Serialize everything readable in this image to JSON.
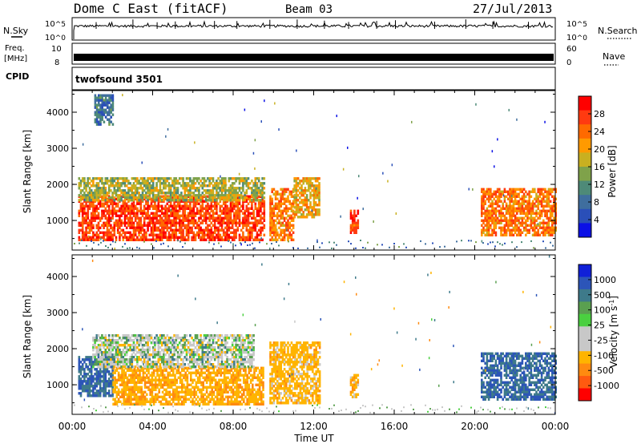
{
  "header": {
    "station": "Dome C East (fitACF)",
    "beam": "Beam 03",
    "date": "27/Jul/2013"
  },
  "strip": {
    "nsky_label": "N.Sky",
    "nsearch_label": "N.Search",
    "freq_label_1": "Freq.",
    "freq_label_2": "[MHz]",
    "nave_label": "Nave",
    "cpid_label": "CPID",
    "cpid_value": "twofsound 3501",
    "noise_ticks": [
      "10^5",
      "10^0"
    ],
    "noise_ticks_right": [
      "10^5",
      "10^0"
    ],
    "freq_ticks": [
      "10",
      "8"
    ],
    "nave_ticks": [
      "60",
      "0"
    ]
  },
  "colors": {
    "power_scale": [
      "#0b10e6",
      "#2a4fb8",
      "#3f6e9e",
      "#4e8a78",
      "#7fa24a",
      "#c9b020",
      "#ff9a00",
      "#ff6a00",
      "#ff3a10",
      "#ff0000"
    ],
    "velocity_scale": [
      "#1020d8",
      "#2c55b8",
      "#3e7a8a",
      "#5aa050",
      "#4ad040",
      "#c8c8c8",
      "#c8c8c8",
      "#ffb400",
      "#ff8a10",
      "#ff5a10",
      "#ff0000"
    ]
  },
  "chart_data": [
    {
      "type": "heatmap",
      "panel": "power",
      "xlabel": "Time UT",
      "ylabel": "Slant Range [km]",
      "x_ticks": [
        "00:00",
        "04:00",
        "08:00",
        "12:00",
        "16:00",
        "20:00",
        "00:00"
      ],
      "y_ticks": [
        "1000",
        "2000",
        "3000",
        "4000"
      ],
      "xlim": [
        0,
        24
      ],
      "ylim": [
        180,
        4600
      ],
      "colorbar_label": "Power [dB]",
      "colorbar_ticks": [
        "28",
        "24",
        "20",
        "16",
        "12",
        "8",
        "4"
      ],
      "regions": [
        {
          "t": [
            0.3,
            9.5
          ],
          "r": [
            450,
            1700
          ],
          "value": 28
        },
        {
          "t": [
            0.3,
            9.5
          ],
          "r": [
            1600,
            2200
          ],
          "value": 16
        },
        {
          "t": [
            1.1,
            2.0
          ],
          "r": [
            3700,
            4500
          ],
          "value": 8
        },
        {
          "t": [
            9.8,
            11.0
          ],
          "r": [
            500,
            1900
          ],
          "value": 24
        },
        {
          "t": [
            11.0,
            12.3
          ],
          "r": [
            1100,
            2200
          ],
          "value": 20
        },
        {
          "t": [
            13.8,
            14.2
          ],
          "r": [
            700,
            1300
          ],
          "value": 28
        },
        {
          "t": [
            20.3,
            24.0
          ],
          "r": [
            600,
            1900
          ],
          "value": 24
        }
      ]
    },
    {
      "type": "heatmap",
      "panel": "velocity",
      "xlabel": "Time UT",
      "ylabel": "Slant Range [km]",
      "x_ticks": [
        "00:00",
        "04:00",
        "08:00",
        "12:00",
        "16:00",
        "20:00",
        "00:00"
      ],
      "y_ticks": [
        "1000",
        "2000",
        "3000",
        "4000"
      ],
      "xlim": [
        0,
        24
      ],
      "ylim": [
        180,
        4600
      ],
      "colorbar_label": "Velocity [m s^-1]",
      "colorbar_ticks": [
        "1000",
        "500",
        "100",
        "25",
        "-25",
        "-100",
        "-500",
        "-1000"
      ],
      "regions": [
        {
          "t": [
            0.3,
            2.0
          ],
          "r": [
            700,
            1800
          ],
          "value": 300
        },
        {
          "t": [
            2.0,
            9.5
          ],
          "r": [
            500,
            1500
          ],
          "value": -250
        },
        {
          "t": [
            1.0,
            9.0
          ],
          "r": [
            1500,
            2400
          ],
          "value": 0
        },
        {
          "t": [
            9.8,
            12.3
          ],
          "r": [
            500,
            2200
          ],
          "value": -200
        },
        {
          "t": [
            13.8,
            14.2
          ],
          "r": [
            700,
            1300
          ],
          "value": -200
        },
        {
          "t": [
            20.3,
            24.0
          ],
          "r": [
            600,
            1900
          ],
          "value": 300
        }
      ]
    }
  ]
}
